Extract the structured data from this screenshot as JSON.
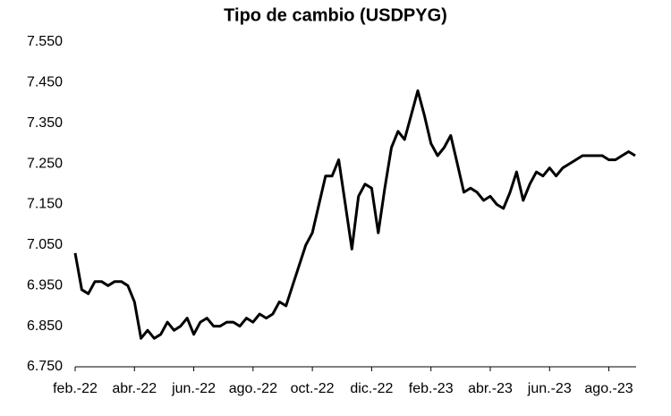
{
  "chart_data": {
    "type": "line",
    "title": "Tipo de cambio (USDPYG)",
    "categories": [
      "feb.-22",
      null,
      null,
      null,
      null,
      null,
      null,
      null,
      null,
      "abr.-22",
      null,
      null,
      null,
      null,
      null,
      null,
      null,
      null,
      "jun.-22",
      null,
      null,
      null,
      null,
      null,
      null,
      null,
      null,
      "ago.-22",
      null,
      null,
      null,
      null,
      null,
      null,
      null,
      null,
      "oct.-22",
      null,
      null,
      null,
      null,
      null,
      null,
      null,
      null,
      "dic.-22",
      null,
      null,
      null,
      null,
      null,
      null,
      null,
      null,
      "feb.-23",
      null,
      null,
      null,
      null,
      null,
      null,
      null,
      null,
      "abr.-23",
      null,
      null,
      null,
      null,
      null,
      null,
      null,
      null,
      "jun.-23",
      null,
      null,
      null,
      null,
      null,
      null,
      null,
      null,
      "ago.-23",
      null,
      null,
      null,
      null
    ],
    "series": [
      {
        "name": "USDPYG",
        "color": "#000000",
        "values": [
          7030,
          6940,
          6930,
          6960,
          6960,
          6950,
          6960,
          6960,
          6950,
          6910,
          6820,
          6840,
          6820,
          6830,
          6860,
          6840,
          6850,
          6870,
          6830,
          6860,
          6870,
          6850,
          6850,
          6860,
          6860,
          6850,
          6870,
          6860,
          6880,
          6870,
          6880,
          6910,
          6900,
          6950,
          7000,
          7050,
          7080,
          7150,
          7220,
          7220,
          7260,
          7150,
          7040,
          7170,
          7200,
          7190,
          7080,
          7190,
          7290,
          7330,
          7310,
          7370,
          7430,
          7370,
          7300,
          7270,
          7290,
          7320,
          7250,
          7180,
          7190,
          7180,
          7160,
          7170,
          7150,
          7140,
          7180,
          7230,
          7160,
          7200,
          7230,
          7220,
          7240,
          7220,
          7240,
          7250,
          7260,
          7270,
          7270,
          7270,
          7270,
          7260,
          7260,
          7270,
          7280,
          7270
        ]
      }
    ],
    "ylim": [
      6750,
      7550
    ],
    "yticks": [
      {
        "value": 6750,
        "label": "6.750"
      },
      {
        "value": 6850,
        "label": "6.850"
      },
      {
        "value": 6950,
        "label": "6.950"
      },
      {
        "value": 7050,
        "label": "7.050"
      },
      {
        "value": 7150,
        "label": "7.150"
      },
      {
        "value": 7250,
        "label": "7.250"
      },
      {
        "value": 7350,
        "label": "7.350"
      },
      {
        "value": 7450,
        "label": "7.450"
      },
      {
        "value": 7550,
        "label": "7.550"
      }
    ],
    "grid": false
  }
}
